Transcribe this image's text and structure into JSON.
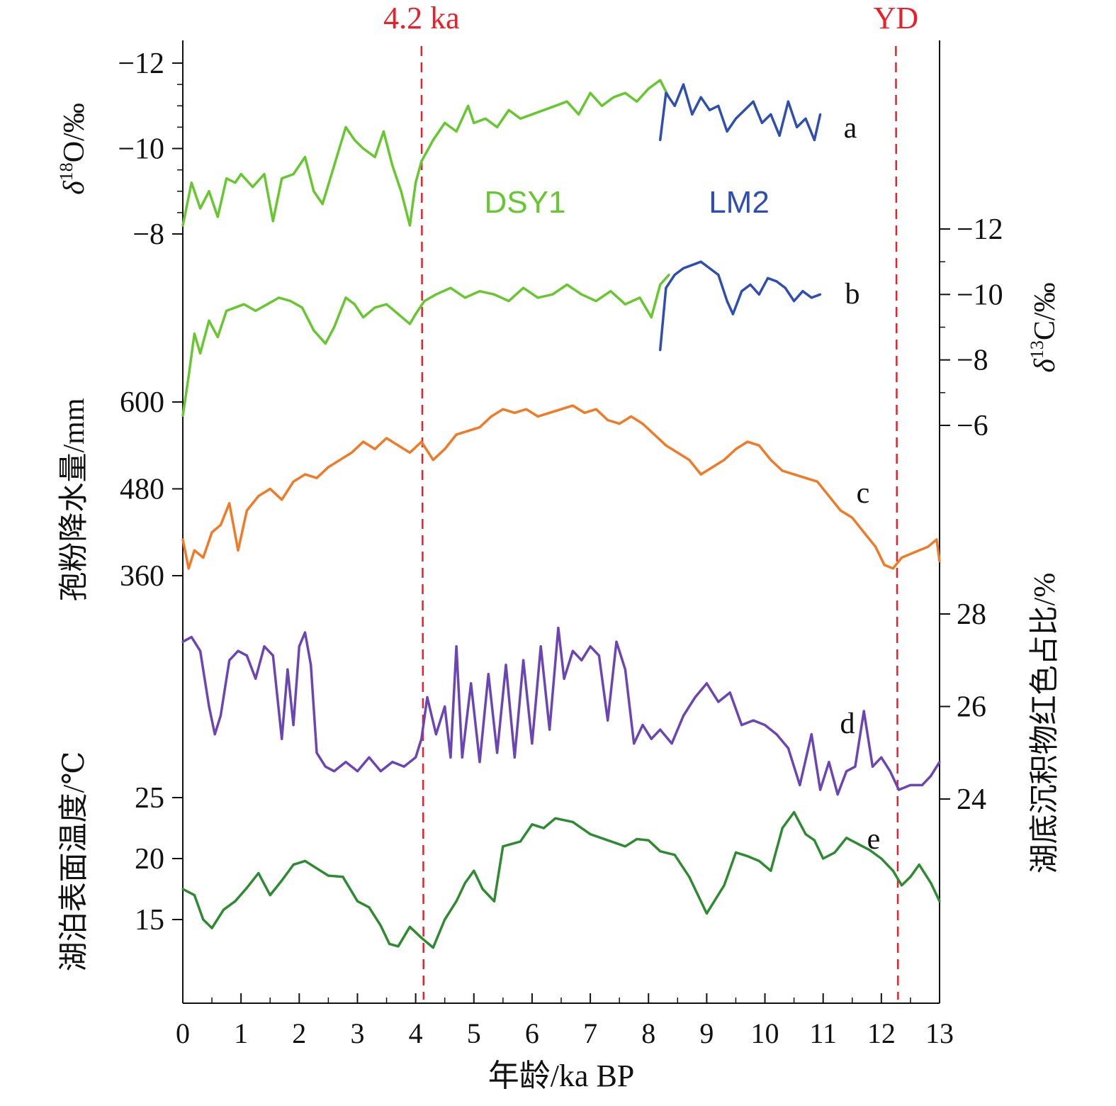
{
  "chart_data": {
    "type": "line",
    "x_axis": {
      "label": "年龄/ka BP",
      "range": [
        0,
        13
      ],
      "ticks": [
        "0",
        "1",
        "2",
        "3",
        "4",
        "5",
        "6",
        "7",
        "8",
        "9",
        "10",
        "11",
        "12",
        "13"
      ]
    },
    "event_lines": [
      {
        "label": "4.2 ka",
        "x": 4.1,
        "color": "#e8202a"
      },
      {
        "label": "YD",
        "x": 12.25,
        "color": "#e8202a"
      }
    ],
    "panels": [
      {
        "id": "a",
        "letter": "a",
        "side": "left",
        "ylabel_pre": "δ",
        "ylabel_sup": "18",
        "ylabel_post": "O/‰",
        "ticks": [
          "−12",
          "−10",
          "−8"
        ],
        "series": [
          {
            "name": "DSY1",
            "color": "#66c72e",
            "x": [
              0,
              0.15,
              0.3,
              0.45,
              0.6,
              0.75,
              0.9,
              1.0,
              1.2,
              1.4,
              1.55,
              1.7,
              1.9,
              2.1,
              2.25,
              2.4,
              2.6,
              2.8,
              2.95,
              3.1,
              3.3,
              3.45,
              3.6,
              3.75,
              3.9,
              4.0,
              4.1,
              4.3,
              4.5,
              4.7,
              4.9,
              5.0,
              5.2,
              5.4,
              5.6,
              5.8,
              6.0,
              6.2,
              6.4,
              6.6,
              6.8,
              7.0,
              7.2,
              7.4,
              7.6,
              7.8,
              8.0,
              8.2,
              8.35
            ],
            "y": [
              -8.2,
              -9.2,
              -8.6,
              -9.0,
              -8.4,
              -9.3,
              -9.2,
              -9.4,
              -9.1,
              -9.4,
              -8.3,
              -9.3,
              -9.4,
              -9.8,
              -9.0,
              -8.7,
              -9.6,
              -10.5,
              -10.2,
              -10.0,
              -9.8,
              -10.4,
              -9.6,
              -9.0,
              -8.2,
              -9.2,
              -9.7,
              -10.2,
              -10.6,
              -10.4,
              -11.0,
              -10.6,
              -10.7,
              -10.5,
              -10.9,
              -10.7,
              -10.8,
              -10.9,
              -11.0,
              -11.1,
              -10.8,
              -11.3,
              -11.0,
              -11.2,
              -11.3,
              -11.1,
              -11.4,
              -11.6,
              -11.2
            ]
          },
          {
            "name": "LM2",
            "color": "#2f4eb2",
            "x": [
              8.2,
              8.3,
              8.45,
              8.6,
              8.75,
              8.9,
              9.05,
              9.2,
              9.35,
              9.5,
              9.65,
              9.8,
              9.95,
              10.1,
              10.25,
              10.4,
              10.55,
              10.7,
              10.85,
              10.95
            ],
            "y": [
              -10.2,
              -11.3,
              -11.0,
              -11.5,
              -10.8,
              -11.2,
              -10.9,
              -11.0,
              -10.4,
              -10.7,
              -10.9,
              -11.1,
              -10.6,
              -10.8,
              -10.3,
              -11.1,
              -10.5,
              -10.7,
              -10.2,
              -10.8
            ]
          }
        ]
      },
      {
        "id": "b",
        "letter": "b",
        "side": "right",
        "ylabel_pre": "δ",
        "ylabel_sup": "13",
        "ylabel_post": "C/‰",
        "ticks": [
          "−12",
          "−10",
          "−8",
          "−6"
        ],
        "series": [
          {
            "name": "DSY1",
            "color": "#66c72e",
            "x": [
              0,
              0.1,
              0.2,
              0.3,
              0.45,
              0.6,
              0.75,
              0.9,
              1.05,
              1.25,
              1.45,
              1.65,
              1.85,
              2.05,
              2.25,
              2.45,
              2.6,
              2.8,
              2.95,
              3.1,
              3.3,
              3.5,
              3.7,
              3.9,
              4.0,
              4.15,
              4.35,
              4.6,
              4.85,
              5.1,
              5.35,
              5.6,
              5.85,
              6.1,
              6.35,
              6.6,
              6.85,
              7.1,
              7.35,
              7.6,
              7.85,
              8.05,
              8.2,
              8.35
            ],
            "y": [
              -6.3,
              -7.5,
              -8.8,
              -8.2,
              -9.2,
              -8.7,
              -9.5,
              -9.6,
              -9.7,
              -9.5,
              -9.7,
              -9.9,
              -9.8,
              -9.6,
              -8.9,
              -8.5,
              -9.0,
              -9.9,
              -9.7,
              -9.3,
              -9.6,
              -9.7,
              -9.4,
              -9.1,
              -9.4,
              -9.8,
              -10.0,
              -10.2,
              -9.9,
              -10.1,
              -10.0,
              -9.8,
              -10.2,
              -9.9,
              -10.0,
              -10.3,
              -10.0,
              -9.8,
              -10.1,
              -9.7,
              -9.9,
              -9.3,
              -10.3,
              -10.6
            ]
          },
          {
            "name": "LM2",
            "color": "#2f4eb2",
            "x": [
              8.2,
              8.3,
              8.45,
              8.6,
              8.75,
              8.9,
              9.05,
              9.2,
              9.35,
              9.45,
              9.6,
              9.75,
              9.9,
              10.05,
              10.2,
              10.35,
              10.5,
              10.65,
              10.8,
              10.95
            ],
            "y": [
              -8.3,
              -10.2,
              -10.6,
              -10.8,
              -10.9,
              -11.0,
              -10.8,
              -10.6,
              -9.8,
              -9.4,
              -10.1,
              -10.3,
              -10.0,
              -10.5,
              -10.4,
              -10.2,
              -9.8,
              -10.1,
              -9.9,
              -10.0
            ]
          }
        ]
      },
      {
        "id": "c",
        "letter": "c",
        "side": "left",
        "ylabel": "孢粉降水量/mm",
        "ticks": [
          "600",
          "480",
          "360"
        ],
        "series": [
          {
            "name": "",
            "color": "#f07a26",
            "x": [
              0,
              0.1,
              0.2,
              0.35,
              0.5,
              0.65,
              0.8,
              0.95,
              1.1,
              1.3,
              1.5,
              1.7,
              1.9,
              2.1,
              2.3,
              2.5,
              2.7,
              2.9,
              3.1,
              3.3,
              3.5,
              3.7,
              3.9,
              4.1,
              4.3,
              4.5,
              4.7,
              4.9,
              5.1,
              5.3,
              5.5,
              5.7,
              5.9,
              6.1,
              6.3,
              6.5,
              6.7,
              6.9,
              7.1,
              7.3,
              7.5,
              7.7,
              7.9,
              8.1,
              8.3,
              8.5,
              8.7,
              8.9,
              9.1,
              9.3,
              9.5,
              9.7,
              9.9,
              10.1,
              10.3,
              10.5,
              10.7,
              10.9,
              11.1,
              11.3,
              11.5,
              11.7,
              11.9,
              12.05,
              12.2,
              12.35,
              12.5,
              12.65,
              12.8,
              12.95,
              13.0
            ],
            "y": [
              410,
              370,
              395,
              385,
              420,
              430,
              460,
              395,
              450,
              470,
              480,
              465,
              490,
              500,
              495,
              510,
              520,
              530,
              545,
              535,
              550,
              540,
              530,
              545,
              520,
              535,
              555,
              560,
              565,
              580,
              590,
              585,
              590,
              580,
              585,
              590,
              595,
              585,
              590,
              575,
              570,
              580,
              570,
              555,
              540,
              530,
              520,
              500,
              510,
              520,
              535,
              545,
              540,
              520,
              505,
              500,
              495,
              490,
              470,
              450,
              440,
              420,
              400,
              375,
              370,
              385,
              390,
              395,
              400,
              410,
              380
            ],
            "nodes_per_step": 1
          }
        ]
      },
      {
        "id": "d",
        "letter": "d",
        "side": "right",
        "ylabel": "湖底沉积物红色占比/%",
        "ticks": [
          "28",
          "26",
          "24"
        ],
        "series": [
          {
            "name": "",
            "color": "#6c45b5",
            "x": [
              0,
              0.15,
              0.3,
              0.45,
              0.55,
              0.65,
              0.8,
              0.95,
              1.1,
              1.25,
              1.4,
              1.55,
              1.7,
              1.8,
              1.9,
              2.0,
              2.1,
              2.2,
              2.3,
              2.45,
              2.6,
              2.8,
              3.0,
              3.2,
              3.4,
              3.6,
              3.8,
              4.0,
              4.1,
              4.2,
              4.35,
              4.5,
              4.6,
              4.7,
              4.8,
              4.95,
              5.1,
              5.25,
              5.4,
              5.55,
              5.7,
              5.85,
              6.0,
              6.15,
              6.3,
              6.45,
              6.55,
              6.7,
              6.85,
              7.0,
              7.15,
              7.3,
              7.45,
              7.6,
              7.75,
              7.9,
              8.05,
              8.2,
              8.4,
              8.6,
              8.8,
              9.0,
              9.2,
              9.4,
              9.6,
              9.8,
              10.0,
              10.2,
              10.4,
              10.6,
              10.8,
              10.95,
              11.1,
              11.25,
              11.4,
              11.55,
              11.7,
              11.85,
              12.0,
              12.15,
              12.3,
              12.5,
              12.7,
              12.85,
              13.0
            ],
            "y": [
              27.4,
              27.5,
              27.2,
              26.0,
              25.4,
              25.8,
              27.0,
              27.2,
              27.1,
              26.6,
              27.3,
              27.1,
              25.3,
              26.8,
              25.6,
              27.3,
              27.6,
              26.9,
              25.0,
              24.7,
              24.6,
              24.8,
              24.6,
              24.9,
              24.6,
              24.8,
              24.7,
              24.9,
              25.3,
              26.2,
              25.4,
              26.0,
              24.9,
              27.3,
              24.9,
              26.5,
              24.8,
              26.7,
              25.0,
              26.9,
              24.9,
              27.0,
              25.2,
              27.3,
              25.5,
              27.7,
              26.6,
              27.2,
              27.0,
              27.3,
              27.1,
              25.7,
              27.4,
              26.8,
              25.2,
              25.6,
              25.3,
              25.5,
              25.2,
              25.8,
              26.2,
              26.5,
              26.1,
              26.3,
              25.6,
              25.7,
              25.6,
              25.4,
              25.1,
              24.3,
              25.4,
              24.2,
              24.8,
              24.1,
              24.6,
              24.7,
              25.9,
              24.7,
              24.9,
              24.6,
              24.2,
              24.3,
              24.3,
              24.5,
              24.8
            ]
          }
        ]
      },
      {
        "id": "e",
        "letter": "e",
        "side": "left",
        "ylabel": "湖泊表面温度/℃",
        "ticks": [
          "25",
          "20",
          "15"
        ],
        "series": [
          {
            "name": "",
            "color": "#2e8b32",
            "x": [
              0,
              0.2,
              0.35,
              0.5,
              0.7,
              0.9,
              1.1,
              1.3,
              1.5,
              1.7,
              1.9,
              2.1,
              2.3,
              2.5,
              2.75,
              3.0,
              3.2,
              3.4,
              3.55,
              3.7,
              3.9,
              4.1,
              4.3,
              4.5,
              4.7,
              4.85,
              5.0,
              5.15,
              5.35,
              5.5,
              5.8,
              6.0,
              6.2,
              6.4,
              6.7,
              7.0,
              7.3,
              7.6,
              7.8,
              8.0,
              8.2,
              8.45,
              8.7,
              9.0,
              9.3,
              9.5,
              9.7,
              9.9,
              10.1,
              10.3,
              10.5,
              10.7,
              10.85,
              11.0,
              11.2,
              11.4,
              11.6,
              11.8,
              12.0,
              12.2,
              12.35,
              12.5,
              12.65,
              12.85,
              13.0
            ],
            "y": [
              17.5,
              17.0,
              15.0,
              14.3,
              15.8,
              16.5,
              17.6,
              18.8,
              17.0,
              18.2,
              19.5,
              19.8,
              19.2,
              18.6,
              18.5,
              16.5,
              16.0,
              14.5,
              13.0,
              12.8,
              14.4,
              13.5,
              12.7,
              15.0,
              16.5,
              18.0,
              19.0,
              17.5,
              16.5,
              21.0,
              21.4,
              22.8,
              22.5,
              23.3,
              23.0,
              22.0,
              21.5,
              21.0,
              21.6,
              21.5,
              20.6,
              20.3,
              18.5,
              15.5,
              17.8,
              20.5,
              20.2,
              19.8,
              19.0,
              22.5,
              23.8,
              22.0,
              21.5,
              20.0,
              20.5,
              21.7,
              21.2,
              20.7,
              20.0,
              19.0,
              17.8,
              18.5,
              19.5,
              18.0,
              16.5
            ]
          }
        ]
      }
    ],
    "grid": false,
    "legend": "none",
    "series_labels": [
      {
        "text": "DSY1",
        "color": "#66c72e"
      },
      {
        "text": "LM2",
        "color": "#2f4eb2"
      }
    ]
  }
}
